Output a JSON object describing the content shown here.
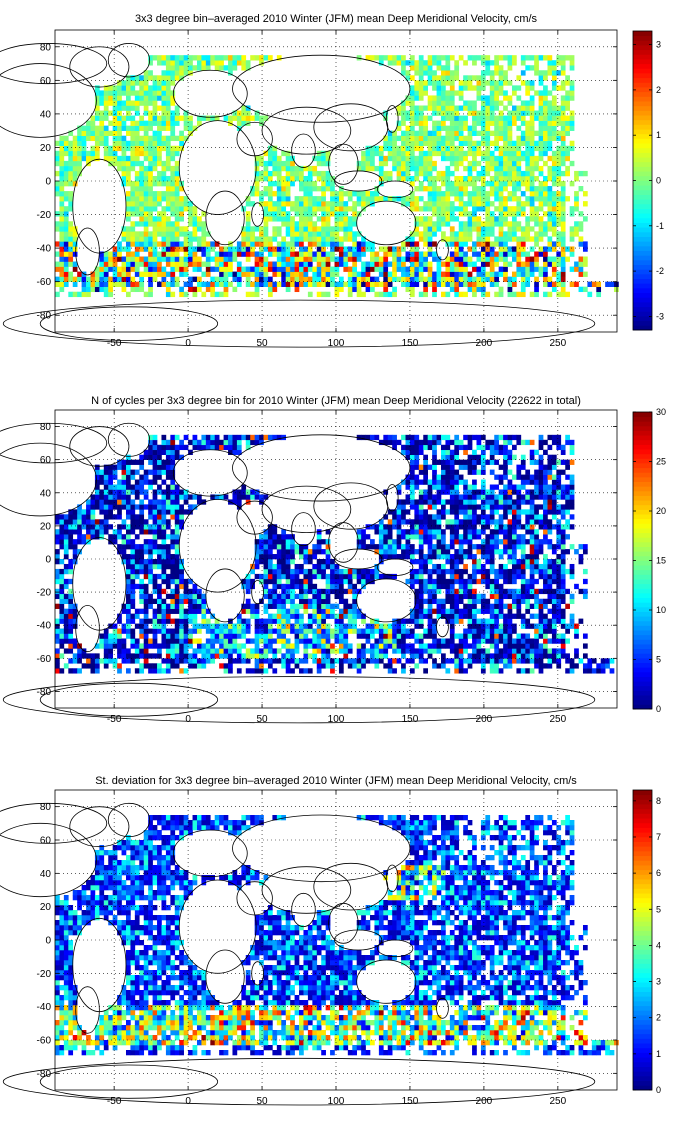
{
  "chart_data": [
    {
      "type": "heatmap",
      "title": "3x3 degree bin–averaged 2010 Winter (JFM) mean Deep Meridional Velocity, cm/s",
      "xlim": [
        -90,
        290
      ],
      "ylim": [
        -90,
        90
      ],
      "x_ticks": [
        -50,
        0,
        50,
        100,
        150,
        200,
        250
      ],
      "y_ticks": [
        80,
        60,
        40,
        20,
        0,
        -20,
        -40,
        -60,
        -80
      ],
      "colorbar": {
        "min": -3.3,
        "max": 3.3,
        "ticks": [
          3,
          2,
          1,
          0,
          -1,
          -2,
          -3
        ],
        "colormap": "jet"
      },
      "grid": true,
      "bin_size_deg": 3
    },
    {
      "type": "heatmap",
      "title": "N of cycles per 3x3 degree bin for 2010 Winter (JFM) mean Deep Meridional Velocity (22622 in total)",
      "xlim": [
        -90,
        290
      ],
      "ylim": [
        -90,
        90
      ],
      "x_ticks": [
        -50,
        0,
        50,
        100,
        150,
        200,
        250
      ],
      "y_ticks": [
        80,
        60,
        40,
        20,
        0,
        -20,
        -40,
        -60,
        -80
      ],
      "colorbar": {
        "min": 0,
        "max": 30,
        "ticks": [
          30,
          25,
          20,
          15,
          10,
          5,
          0
        ],
        "colormap": "jet"
      },
      "grid": true,
      "bin_size_deg": 3
    },
    {
      "type": "heatmap",
      "title": "St. deviation for 3x3 degree bin–averaged 2010 Winter (JFM) mean Deep Meridional Velocity, cm/s",
      "xlim": [
        -90,
        290
      ],
      "ylim": [
        -90,
        90
      ],
      "x_ticks": [
        -50,
        0,
        50,
        100,
        150,
        200,
        250
      ],
      "y_ticks": [
        80,
        60,
        40,
        20,
        0,
        -20,
        -40,
        -60,
        -80
      ],
      "colorbar": {
        "min": 0,
        "max": 8.3,
        "ticks": [
          8,
          7,
          6,
          5,
          4,
          3,
          2,
          1,
          0
        ],
        "colormap": "jet"
      },
      "grid": true,
      "bin_size_deg": 3
    }
  ]
}
